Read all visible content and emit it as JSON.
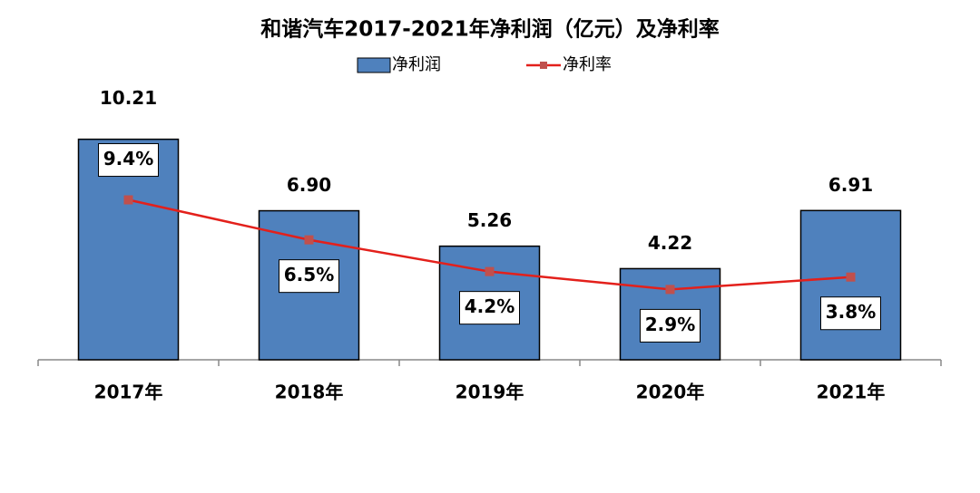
{
  "chart_data": {
    "type": "bar",
    "title": "和谐汽车2017-2021年净利润（亿元）及净利率",
    "categories": [
      "2017年",
      "2018年",
      "2019年",
      "2020年",
      "2021年"
    ],
    "series": [
      {
        "name": "净利润",
        "type": "bar",
        "color": "#4f81bd",
        "values": [
          10.21,
          6.9,
          5.26,
          4.22,
          6.91
        ],
        "value_labels": [
          "10.21",
          "6.90",
          "5.26",
          "4.22",
          "6.91"
        ]
      },
      {
        "name": "净利率",
        "type": "line",
        "axis": "y2",
        "color": "#e3201b",
        "values": [
          9.4,
          6.5,
          4.2,
          2.9,
          3.8
        ],
        "value_labels": [
          "9.4%",
          "6.5%",
          "4.2%",
          "2.9%",
          "3.8%"
        ]
      }
    ],
    "ylim": [
      0,
      12
    ],
    "y2lim": [
      -2.2,
      16.6
    ],
    "legend": "top"
  }
}
